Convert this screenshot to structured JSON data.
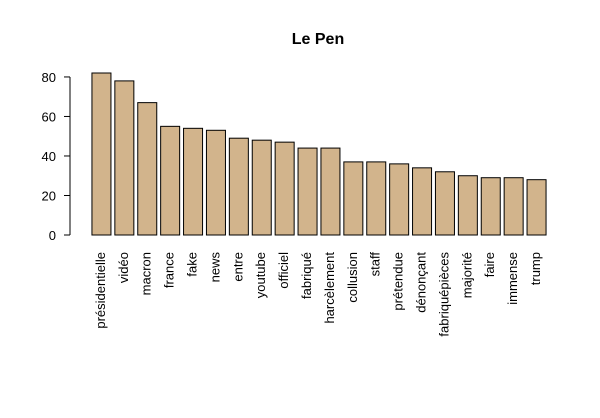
{
  "chart_data": {
    "type": "bar",
    "title": "Le Pen",
    "xlabel": "",
    "ylabel": "",
    "categories": [
      "présidentielle",
      "vidéo",
      "macron",
      "france",
      "fake",
      "news",
      "entre",
      "youtube",
      "officiel",
      "fabriqué",
      "harcèlement",
      "collusion",
      "staff",
      "prétendue",
      "dénonçant",
      "fabriquépièces",
      "majorité",
      "faire",
      "immense",
      "trump"
    ],
    "values": [
      82,
      78,
      67,
      55,
      54,
      53,
      49,
      48,
      47,
      44,
      44,
      37,
      37,
      36,
      34,
      32,
      30,
      29,
      29,
      28
    ],
    "ylim": [
      0,
      82
    ],
    "yticks": [
      0,
      20,
      40,
      60,
      80
    ],
    "bar_color": "#D2B48C",
    "grid": false,
    "legend": "none"
  }
}
